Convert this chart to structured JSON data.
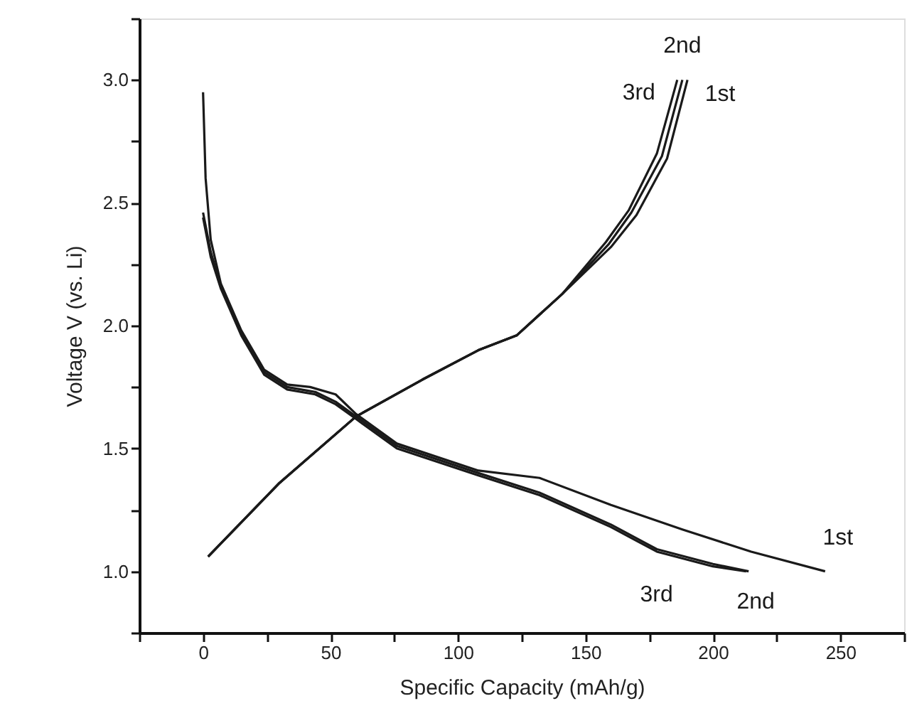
{
  "chart_data": {
    "type": "line",
    "xlabel": "Specific Capacity (mAh/g)",
    "ylabel": "Voltage V (vs. Li)",
    "xlim": [
      -25,
      275
    ],
    "ylim": [
      0.75,
      3.25
    ],
    "xticks": [
      {
        "value": -25,
        "label": null
      },
      0,
      {
        "value": 25,
        "label": null
      },
      50,
      {
        "value": 75,
        "label": null
      },
      100,
      {
        "value": 125,
        "label": null
      },
      150,
      {
        "value": 175,
        "label": null
      },
      200,
      {
        "value": 225,
        "label": null
      },
      250,
      {
        "value": 275,
        "label": null
      }
    ],
    "yticks": [
      {
        "value": 0.75,
        "label": null
      },
      {
        "value": 1,
        "label": "1.0"
      },
      {
        "value": 1.25,
        "label": null
      },
      {
        "value": 1.5,
        "label": "1.5"
      },
      {
        "value": 1.75,
        "label": null
      },
      {
        "value": 2,
        "label": "2.0"
      },
      {
        "value": 2.25,
        "label": null
      },
      {
        "value": 2.5,
        "label": "2.5"
      },
      {
        "value": 2.75,
        "label": null
      },
      {
        "value": 3,
        "label": "3.0"
      },
      {
        "value": 3.25,
        "label": null
      }
    ],
    "grid": false,
    "line_style": "solid",
    "marker": "none",
    "series": [
      {
        "name": "1st",
        "color": "#1a1a1a",
        "x": [
          0,
          1,
          3,
          7,
          15,
          24,
          33,
          42,
          52,
          60,
          76,
          108,
          132,
          160,
          188,
          215,
          244
        ],
        "values": [
          2.95,
          2.6,
          2.35,
          2.17,
          1.98,
          1.82,
          1.76,
          1.75,
          1.72,
          1.64,
          1.52,
          1.41,
          1.38,
          1.27,
          1.17,
          1.08,
          1.0
        ]
      },
      {
        "name": "2nd",
        "color": "#1a1a1a",
        "x": [
          0,
          3,
          7,
          15,
          24,
          33,
          44,
          52,
          60,
          76,
          108,
          132,
          160,
          178,
          200,
          214
        ],
        "values": [
          2.46,
          2.3,
          2.16,
          1.97,
          1.81,
          1.75,
          1.73,
          1.69,
          1.63,
          1.51,
          1.4,
          1.32,
          1.19,
          1.09,
          1.03,
          1.0
        ]
      },
      {
        "name": "3rd",
        "color": "#1a1a1a",
        "x": [
          0,
          3,
          7,
          15,
          24,
          33,
          44,
          52,
          60,
          76,
          108,
          132,
          160,
          178,
          200,
          213
        ],
        "values": [
          2.44,
          2.28,
          2.15,
          1.96,
          1.8,
          1.74,
          1.72,
          1.68,
          1.62,
          1.5,
          1.39,
          1.31,
          1.18,
          1.08,
          1.02,
          1.0
        ]
      },
      {
        "name": "1st",
        "color": "#1a1a1a",
        "x": [
          2,
          30,
          60,
          86,
          108,
          123,
          141,
          160,
          170,
          182,
          190
        ],
        "values": [
          1.06,
          1.36,
          1.63,
          1.78,
          1.9,
          1.96,
          2.13,
          2.32,
          2.45,
          2.68,
          3.0
        ]
      },
      {
        "name": "2nd",
        "color": "#1a1a1a",
        "x": [
          2,
          30,
          60,
          86,
          108,
          123,
          141,
          159,
          168,
          180,
          188
        ],
        "values": [
          1.06,
          1.36,
          1.63,
          1.78,
          1.9,
          1.96,
          2.13,
          2.33,
          2.46,
          2.69,
          3.0
        ]
      },
      {
        "name": "3rd",
        "color": "#1a1a1a",
        "x": [
          2,
          30,
          60,
          86,
          108,
          123,
          141,
          158,
          167,
          178,
          186
        ],
        "values": [
          1.06,
          1.36,
          1.63,
          1.78,
          1.9,
          1.96,
          2.13,
          2.34,
          2.47,
          2.7,
          3.0
        ]
      }
    ]
  }
}
